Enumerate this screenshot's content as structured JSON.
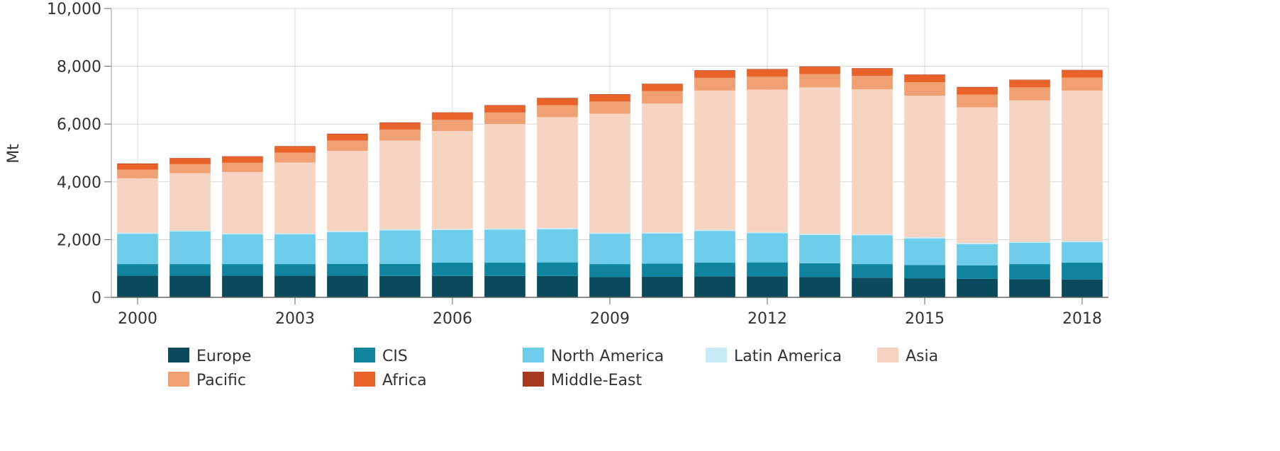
{
  "chart_data": {
    "type": "bar",
    "stacked": true,
    "title": "",
    "xlabel": "",
    "ylabel": "Mt",
    "ylim": [
      0,
      10000
    ],
    "yticks": [
      0,
      2000,
      4000,
      6000,
      8000,
      10000
    ],
    "ytick_labels": [
      "0",
      "2,000",
      "4,000",
      "6,000",
      "8,000",
      "10,000"
    ],
    "xtick_labels": [
      "2000",
      "2003",
      "2006",
      "2009",
      "2012",
      "2015",
      "2018"
    ],
    "xtick_indices": [
      0,
      3,
      6,
      9,
      12,
      15,
      18
    ],
    "grid": true,
    "legend_position": "bottom",
    "categories": [
      "2000",
      "2001",
      "2002",
      "2003",
      "2004",
      "2005",
      "2006",
      "2007",
      "2008",
      "2009",
      "2010",
      "2011",
      "2012",
      "2013",
      "2014",
      "2015",
      "2016",
      "2017",
      "2018"
    ],
    "series": [
      {
        "name": "Europe",
        "color": "#0b4a5c",
        "values": [
          750,
          750,
          750,
          750,
          750,
          740,
          740,
          740,
          740,
          700,
          710,
          730,
          730,
          700,
          680,
          660,
          640,
          630,
          620
        ]
      },
      {
        "name": "CIS",
        "color": "#10849f",
        "values": [
          400,
          400,
          400,
          400,
          410,
          420,
          460,
          460,
          470,
          450,
          460,
          470,
          480,
          480,
          470,
          460,
          470,
          520,
          580
        ]
      },
      {
        "name": "North America",
        "color": "#6ecdea",
        "values": [
          1050,
          1130,
          1030,
          1030,
          1100,
          1160,
          1130,
          1140,
          1150,
          1050,
          1040,
          1100,
          1010,
          980,
          1000,
          920,
          730,
          740,
          710
        ]
      },
      {
        "name": "Latin America",
        "color": "#c6eaf6",
        "values": [
          40,
          40,
          40,
          40,
          40,
          40,
          40,
          40,
          40,
          40,
          40,
          40,
          40,
          40,
          40,
          40,
          40,
          40,
          40
        ]
      },
      {
        "name": "Asia",
        "color": "#f7d3c1",
        "values": [
          1880,
          1980,
          2120,
          2450,
          2770,
          3070,
          3390,
          3620,
          3840,
          4120,
          4460,
          4820,
          4930,
          5070,
          5010,
          4900,
          4700,
          4890,
          5210
        ]
      },
      {
        "name": "Pacific",
        "color": "#f0a072",
        "values": [
          300,
          310,
          320,
          340,
          360,
          380,
          390,
          400,
          410,
          420,
          430,
          440,
          450,
          460,
          470,
          470,
          440,
          450,
          450
        ]
      },
      {
        "name": "Africa",
        "color": "#e8622a",
        "values": [
          200,
          200,
          210,
          210,
          220,
          230,
          240,
          240,
          240,
          240,
          240,
          250,
          250,
          250,
          250,
          250,
          250,
          250,
          250
        ]
      },
      {
        "name": "Middle-East",
        "color": "#a63a1e",
        "values": [
          15,
          15,
          15,
          15,
          15,
          15,
          15,
          15,
          15,
          15,
          15,
          15,
          15,
          15,
          15,
          15,
          15,
          15,
          15
        ]
      }
    ]
  }
}
